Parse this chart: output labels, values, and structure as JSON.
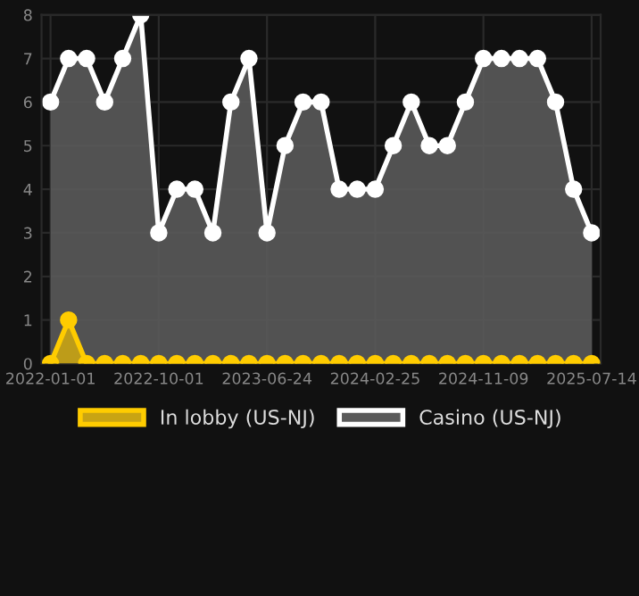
{
  "chart_data": {
    "type": "area",
    "categories": [
      "2022-01-01",
      null,
      null,
      null,
      null,
      null,
      "2022-10-01",
      null,
      null,
      null,
      null,
      null,
      "2023-06-24",
      null,
      null,
      null,
      null,
      null,
      "2024-02-25",
      null,
      null,
      null,
      null,
      null,
      "2024-11-09",
      null,
      null,
      null,
      null,
      null,
      "2025-07-14"
    ],
    "series": [
      {
        "name": "In lobby (US-NJ)",
        "color": "#ffcc00",
        "values": [
          0,
          1,
          0,
          0,
          0,
          0,
          0,
          0,
          0,
          0,
          0,
          0,
          0,
          0,
          0,
          0,
          0,
          0,
          0,
          0,
          0,
          0,
          0,
          0,
          0,
          0,
          0,
          0,
          0,
          0,
          0
        ]
      },
      {
        "name": "Casino (US-NJ)",
        "color": "#ffffff",
        "values": [
          6,
          7,
          7,
          6,
          7,
          8,
          3,
          4,
          4,
          3,
          6,
          7,
          3,
          5,
          6,
          6,
          4,
          4,
          4,
          5,
          6,
          5,
          5,
          6,
          7,
          7,
          7,
          7,
          6,
          4,
          3
        ]
      }
    ],
    "ylim": [
      0,
      8
    ],
    "yticks": [
      0,
      1,
      2,
      3,
      4,
      5,
      6,
      7,
      8
    ],
    "grid": true,
    "legend": "bottom",
    "marker": "circle",
    "line_style": "solid"
  }
}
